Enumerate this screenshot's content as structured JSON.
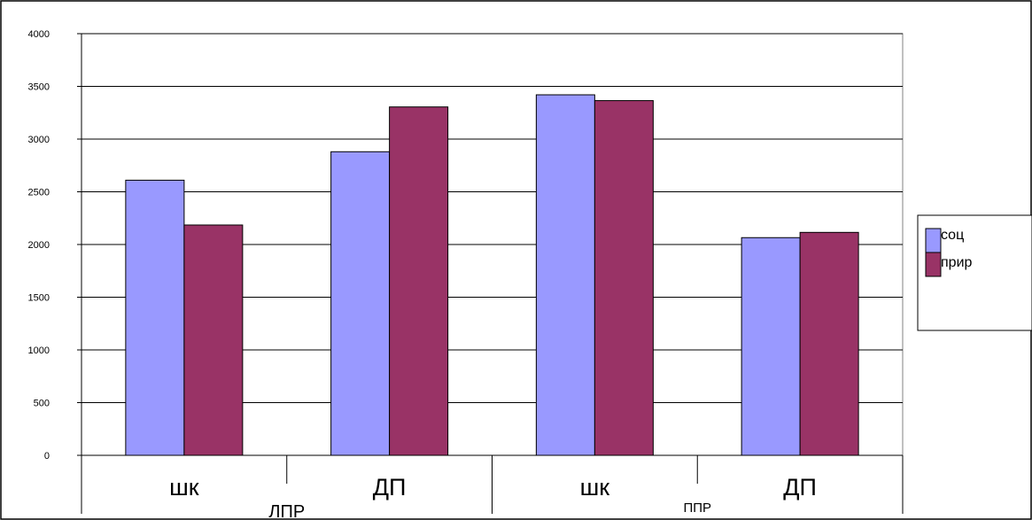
{
  "chart_data": {
    "type": "bar",
    "categories": [
      "шк",
      "ДП",
      "шк",
      "ДП"
    ],
    "groups": [
      {
        "label": "ЛПР",
        "categories": [
          "шк",
          "ДП"
        ]
      },
      {
        "label": "ППР",
        "categories": [
          "шк",
          "ДП"
        ]
      }
    ],
    "series": [
      {
        "name": "соц",
        "color": "#9999ff",
        "values": [
          2610,
          2880,
          3420,
          2065
        ]
      },
      {
        "name": "прир",
        "color": "#993366",
        "values": [
          2185,
          3305,
          3365,
          2115
        ]
      }
    ],
    "ylim": [
      0,
      4000
    ],
    "yticks": [
      0,
      500,
      1000,
      1500,
      2000,
      2500,
      3000,
      3500,
      4000
    ],
    "grid": true,
    "legend_position": "right"
  }
}
